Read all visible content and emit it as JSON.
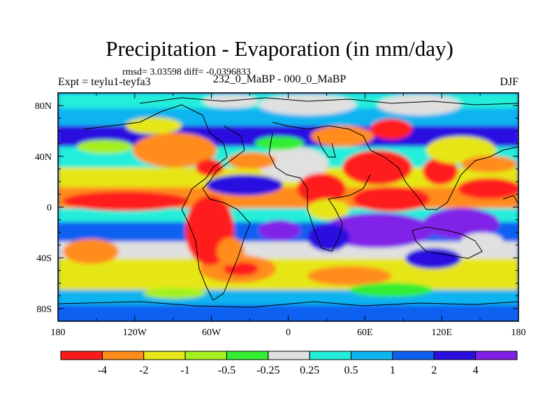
{
  "title": "Precipitation - Evaporation (in mm/day)",
  "stats": "rmsd= 3.03598  diff= -0.0396833",
  "subtitle_left": "Expt = teylu1-teyfa3",
  "subtitle_center": "232_0_MaBP - 000_0_MaBP",
  "subtitle_right": "DJF",
  "map": {
    "lat_ticks": [
      "80N",
      "40N",
      "0",
      "40S",
      "80S"
    ],
    "lon_ticks": [
      "180",
      "120W",
      "60W",
      "0",
      "60E",
      "120E",
      "180"
    ]
  },
  "colorbar": {
    "colors": [
      "#ff1a1a",
      "#ff8c1a",
      "#e6e619",
      "#a6f01f",
      "#33ee33",
      "#e0e0e0",
      "#22eeda",
      "#10b4f0",
      "#1060f0",
      "#2a10e0",
      "#8020e8"
    ],
    "labels": [
      "-4",
      "-2",
      "-1",
      "-0.5",
      "-0.25",
      "0.25",
      "0.5",
      "1",
      "2",
      "4"
    ]
  }
}
